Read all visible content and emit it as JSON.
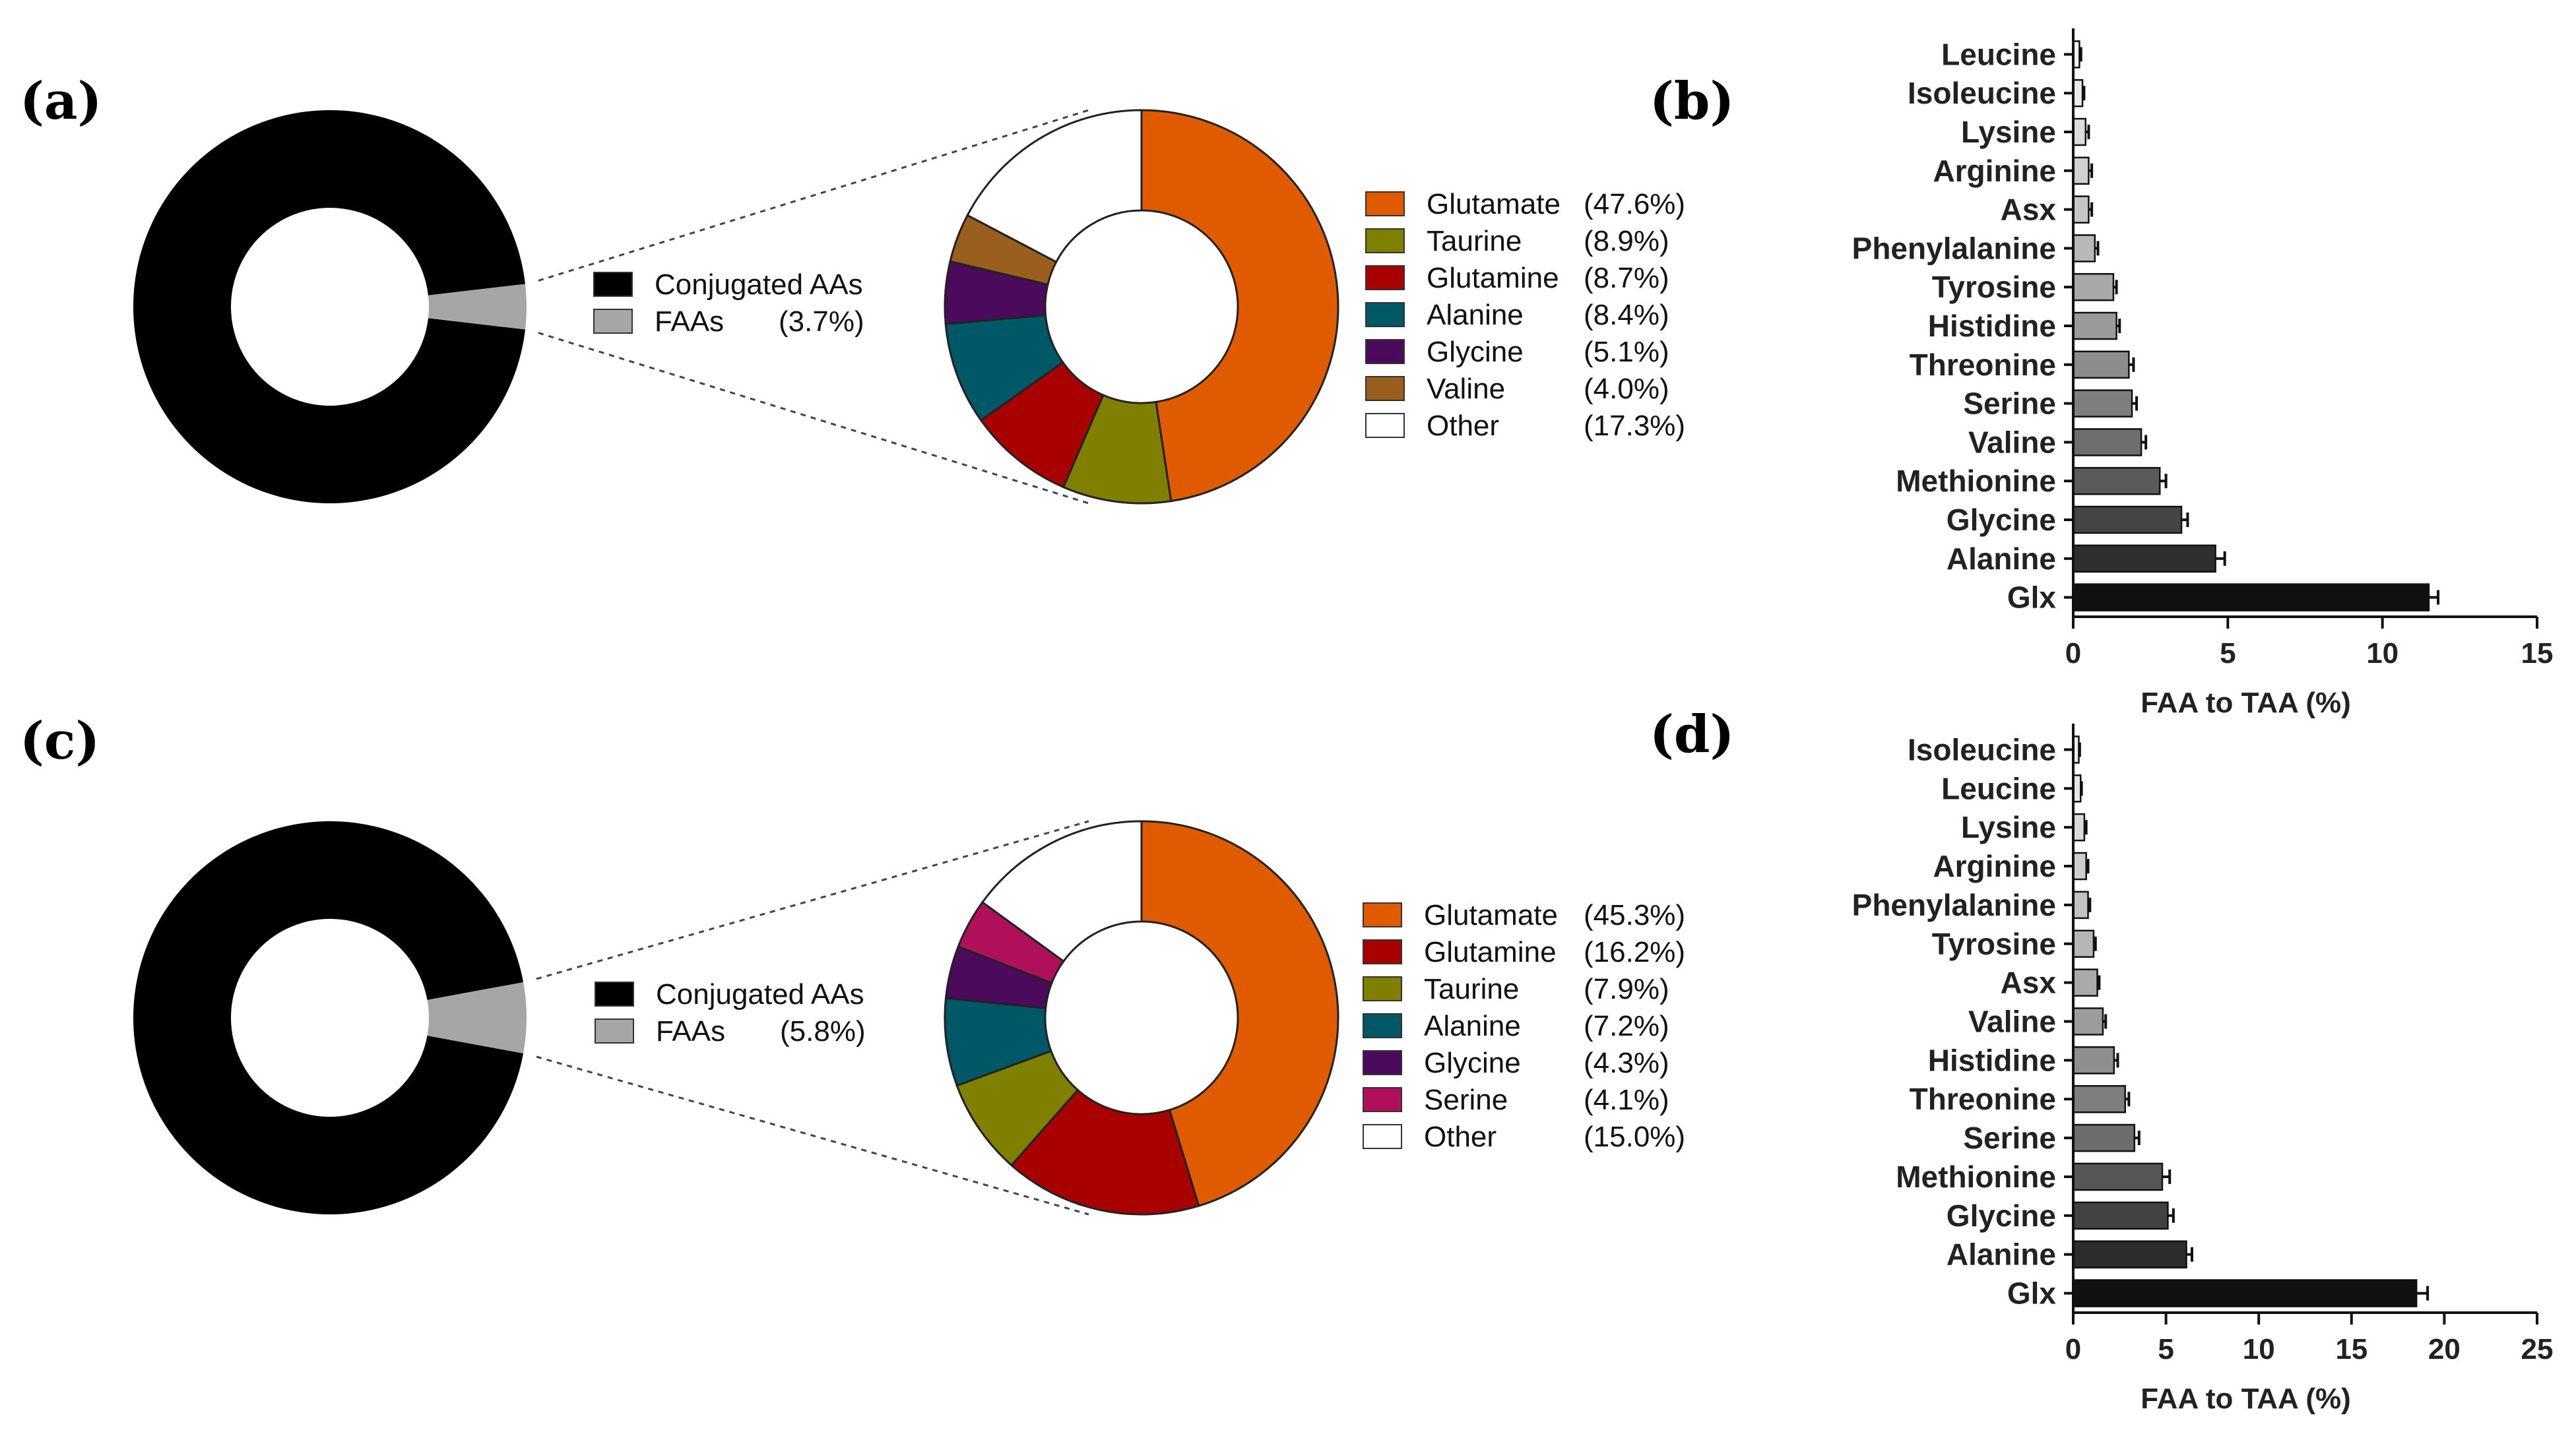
{
  "panels": [
    "(a)",
    "(b)",
    "(c)",
    "(d)"
  ],
  "chart_data": [
    {
      "panel": "(a)",
      "type": "pie",
      "overview": {
        "slices": [
          {
            "label": "Conjugated AAs",
            "pct_text": "",
            "value": 96.3,
            "color": "#000000"
          },
          {
            "label": "FAAs",
            "pct_text": "(3.7%)",
            "value": 3.7,
            "color": "#a6a6a6"
          }
        ]
      },
      "breakdown": {
        "slices": [
          {
            "label": "Glutamate",
            "pct_text": "(47.6%)",
            "value": 47.6,
            "color": "#e05a00"
          },
          {
            "label": "Taurine",
            "pct_text": "(8.9%)",
            "value": 8.9,
            "color": "#808000"
          },
          {
            "label": "Glutamine",
            "pct_text": "(8.7%)",
            "value": 8.7,
            "color": "#a80000"
          },
          {
            "label": "Alanine",
            "pct_text": "(8.4%)",
            "value": 8.4,
            "color": "#005766"
          },
          {
            "label": "Glycine",
            "pct_text": "(5.1%)",
            "value": 5.1,
            "color": "#4b0a5c"
          },
          {
            "label": "Valine",
            "pct_text": "(4.0%)",
            "value": 4.0,
            "color": "#9a5f1e"
          },
          {
            "label": "Other",
            "pct_text": "(17.3%)",
            "value": 17.3,
            "color": "#ffffff"
          }
        ]
      }
    },
    {
      "panel": "(b)",
      "type": "bar",
      "orientation": "horizontal",
      "categories": [
        "Leucine",
        "Isoleucine",
        "Lysine",
        "Arginine",
        "Asx",
        "Phenylalanine",
        "Tyrosine",
        "Histidine",
        "Threonine",
        "Serine",
        "Valine",
        "Methionine",
        "Glycine",
        "Alanine",
        "Glx"
      ],
      "values": [
        0.2,
        0.3,
        0.4,
        0.5,
        0.5,
        0.7,
        1.3,
        1.4,
        1.8,
        1.9,
        2.2,
        2.8,
        3.5,
        4.6,
        11.5
      ],
      "errors": [
        0.05,
        0.05,
        0.1,
        0.1,
        0.1,
        0.1,
        0.1,
        0.1,
        0.15,
        0.15,
        0.15,
        0.2,
        0.2,
        0.3,
        0.3
      ],
      "colors": [
        "#f2f2f2",
        "#ebebeb",
        "#dcdcdc",
        "#d0d0d0",
        "#c6c6c6",
        "#b8b8b8",
        "#a8a8a8",
        "#9a9a9a",
        "#8c8c8c",
        "#7e7e7e",
        "#6e6e6e",
        "#5a5a5a",
        "#454545",
        "#2e2e2e",
        "#111111"
      ],
      "xlabel": "FAA to TAA (%)",
      "xlim": [
        0,
        15
      ],
      "xticks": [
        0,
        5,
        10,
        15
      ]
    },
    {
      "panel": "(c)",
      "type": "pie",
      "overview": {
        "slices": [
          {
            "label": "Conjugated AAs",
            "pct_text": "",
            "value": 94.2,
            "color": "#000000"
          },
          {
            "label": "FAAs",
            "pct_text": "(5.8%)",
            "value": 5.8,
            "color": "#a6a6a6"
          }
        ]
      },
      "breakdown": {
        "slices": [
          {
            "label": "Glutamate",
            "pct_text": "(45.3%)",
            "value": 45.3,
            "color": "#e05a00"
          },
          {
            "label": "Glutamine",
            "pct_text": "(16.2%)",
            "value": 16.2,
            "color": "#a80000"
          },
          {
            "label": "Taurine",
            "pct_text": "(7.9%)",
            "value": 7.9,
            "color": "#808000"
          },
          {
            "label": "Alanine",
            "pct_text": "(7.2%)",
            "value": 7.2,
            "color": "#005766"
          },
          {
            "label": "Glycine",
            "pct_text": "(4.3%)",
            "value": 4.3,
            "color": "#4b0a5c"
          },
          {
            "label": "Serine",
            "pct_text": "(4.1%)",
            "value": 4.1,
            "color": "#b0105a"
          },
          {
            "label": "Other",
            "pct_text": "(15.0%)",
            "value": 15.0,
            "color": "#ffffff"
          }
        ]
      }
    },
    {
      "panel": "(d)",
      "type": "bar",
      "orientation": "horizontal",
      "categories": [
        "Isoleucine",
        "Leucine",
        "Lysine",
        "Arginine",
        "Phenylalanine",
        "Tyrosine",
        "Asx",
        "Valine",
        "Histidine",
        "Threonine",
        "Serine",
        "Methionine",
        "Glycine",
        "Alanine",
        "Glx"
      ],
      "values": [
        0.3,
        0.4,
        0.6,
        0.7,
        0.8,
        1.1,
        1.3,
        1.6,
        2.2,
        2.8,
        3.3,
        4.8,
        5.1,
        6.1,
        18.5
      ],
      "errors": [
        0.05,
        0.05,
        0.1,
        0.1,
        0.1,
        0.1,
        0.1,
        0.15,
        0.2,
        0.2,
        0.25,
        0.4,
        0.3,
        0.3,
        0.6
      ],
      "colors": [
        "#f0f0f0",
        "#e6e6e6",
        "#dadada",
        "#cecece",
        "#c2c2c2",
        "#b6b6b6",
        "#aaaaaa",
        "#9c9c9c",
        "#8e8e8e",
        "#7e7e7e",
        "#6c6c6c",
        "#575757",
        "#424242",
        "#2c2c2c",
        "#111111"
      ],
      "xlabel": "FAA to TAA (%)",
      "xlim": [
        0,
        25
      ],
      "xticks": [
        0,
        5,
        10,
        15,
        20,
        25
      ]
    }
  ]
}
